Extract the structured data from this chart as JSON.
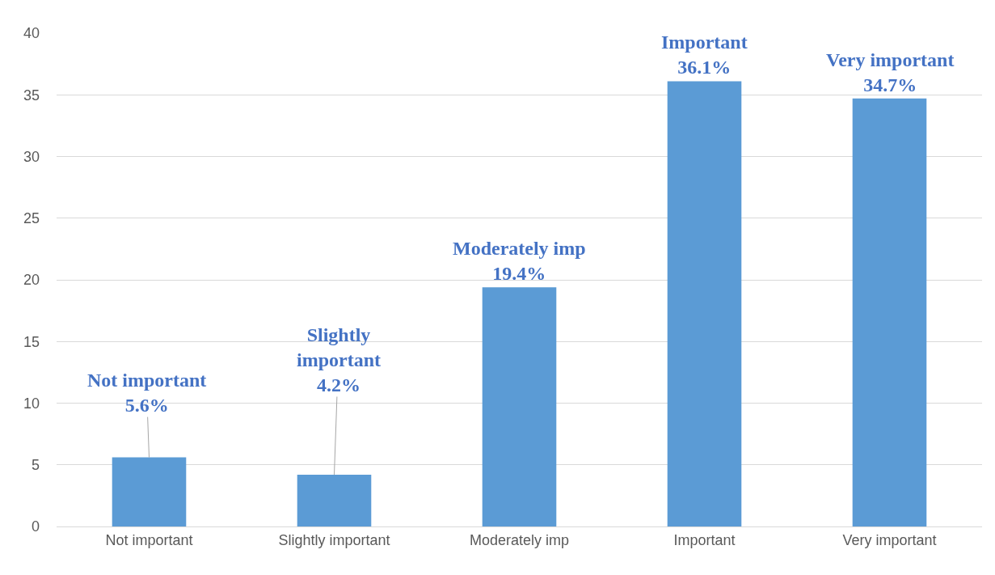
{
  "chart_data": {
    "type": "bar",
    "categories": [
      "Not important",
      "Slightly important",
      "Moderately imp",
      "Important",
      "Very important"
    ],
    "values": [
      5.6,
      4.2,
      19.4,
      36.1,
      34.7
    ],
    "value_labels": [
      "Not important\n5.6%",
      "Slightly\nimportant\n4.2%",
      "Moderately imp\n19.4%",
      "Important\n36.1%",
      "Very important\n34.7%"
    ],
    "color": "#5b9bd5",
    "ylim": [
      0,
      40
    ],
    "yticks": [
      0,
      5,
      10,
      15,
      20,
      25,
      30,
      35,
      40
    ],
    "grid": "y",
    "legend": false
  }
}
